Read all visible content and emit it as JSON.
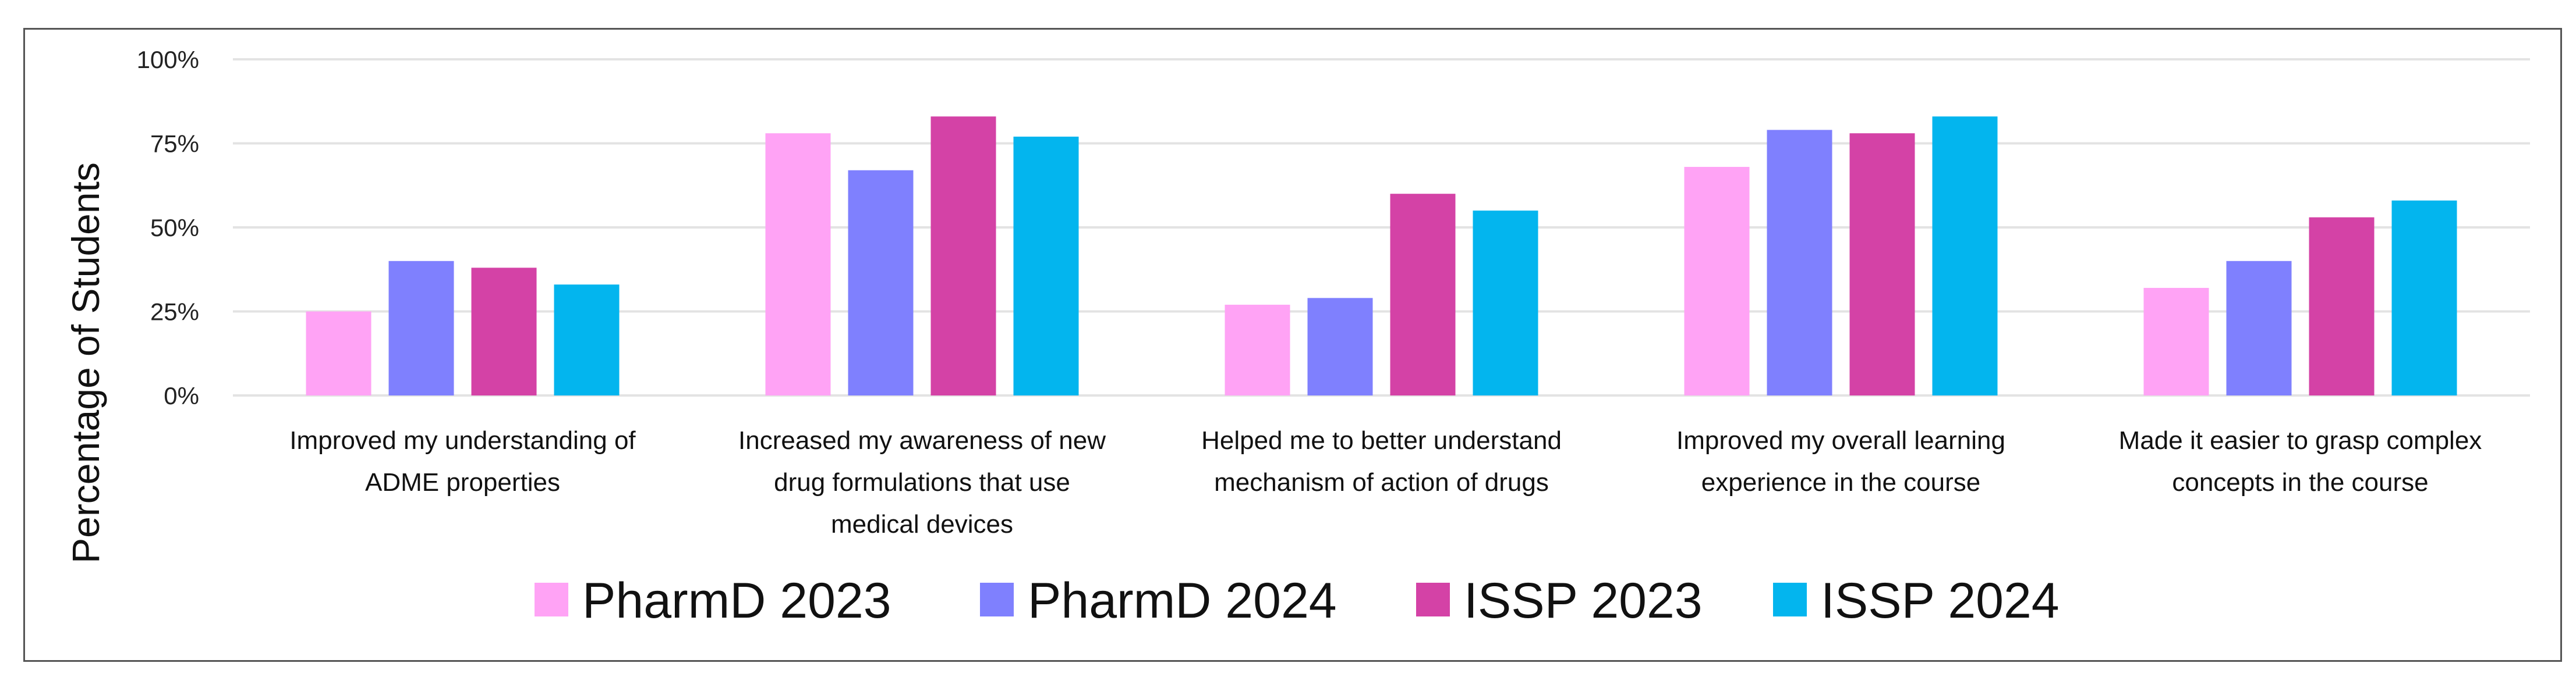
{
  "chart_data": {
    "type": "bar",
    "title": "",
    "xlabel": "",
    "ylabel": "Percentage of Students",
    "ylim": [
      0,
      100
    ],
    "yticks": [
      "0%",
      "25%",
      "50%",
      "75%",
      "100%"
    ],
    "ytick_values": [
      0,
      25,
      50,
      75,
      100
    ],
    "grid": true,
    "legend_position": "bottom",
    "categories": [
      [
        "Improved my understanding of",
        "ADME properties"
      ],
      [
        "Increased my awareness of new",
        "drug formulations that use",
        "medical devices"
      ],
      [
        "Helped me to better understand",
        "mechanism of action of drugs"
      ],
      [
        "Improved my overall learning",
        "experience in the course"
      ],
      [
        "Made it easier to grasp complex",
        "concepts in the course"
      ]
    ],
    "series": [
      {
        "name": "PharmD 2023",
        "color": "#ffa3f5",
        "values": [
          25,
          78,
          27,
          68,
          32
        ]
      },
      {
        "name": "PharmD 2024",
        "color": "#7f80fe",
        "values": [
          40,
          67,
          29,
          79,
          40
        ]
      },
      {
        "name": "ISSP 2023",
        "color": "#d442a6",
        "values": [
          38,
          83,
          60,
          78,
          53
        ]
      },
      {
        "name": "ISSP 2024",
        "color": "#03b5ee",
        "values": [
          33,
          77,
          55,
          83,
          58
        ]
      }
    ]
  }
}
